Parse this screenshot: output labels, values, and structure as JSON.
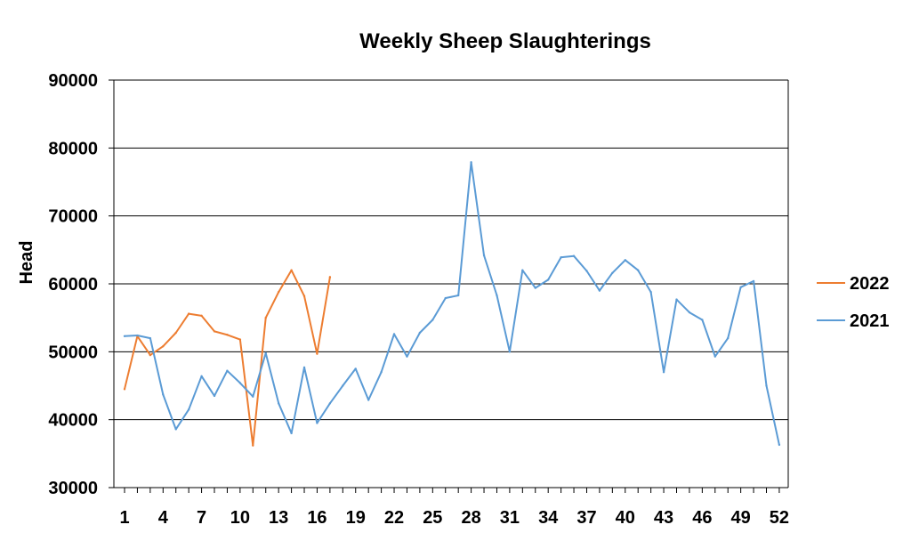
{
  "chart_data": {
    "type": "line",
    "title": "Weekly Sheep Slaughterings",
    "xlabel": "",
    "ylabel": "Head",
    "xlim": [
      1,
      52
    ],
    "ylim": [
      30000,
      90000
    ],
    "y_ticks": [
      30000,
      40000,
      50000,
      60000,
      70000,
      80000,
      90000
    ],
    "x_ticks": [
      1,
      4,
      7,
      10,
      13,
      16,
      19,
      22,
      25,
      28,
      31,
      34,
      37,
      40,
      43,
      46,
      49,
      52
    ],
    "grid": "horizontal",
    "legend_position": "right",
    "series": [
      {
        "name": "2022",
        "color": "#ED7D31",
        "x": [
          1,
          2,
          3,
          4,
          5,
          6,
          7,
          8,
          9,
          10,
          11,
          12,
          13,
          14,
          15,
          16,
          17
        ],
        "values": [
          44500,
          52300,
          49500,
          50800,
          52800,
          55600,
          55300,
          53000,
          52500,
          51800,
          36200,
          55000,
          58800,
          62000,
          58200,
          49700,
          61000
        ]
      },
      {
        "name": "2021",
        "color": "#5B9BD5",
        "x": [
          1,
          2,
          3,
          4,
          5,
          6,
          7,
          8,
          9,
          10,
          11,
          12,
          13,
          14,
          15,
          16,
          17,
          18,
          19,
          20,
          21,
          22,
          23,
          24,
          25,
          26,
          27,
          28,
          29,
          30,
          31,
          32,
          33,
          34,
          35,
          36,
          37,
          38,
          39,
          40,
          41,
          42,
          43,
          44,
          45,
          46,
          47,
          48,
          49,
          50,
          51,
          52
        ],
        "values": [
          52300,
          52400,
          52000,
          43700,
          38600,
          41500,
          46400,
          43500,
          47200,
          45400,
          43400,
          49800,
          42400,
          38000,
          47700,
          39500,
          42400,
          45000,
          47500,
          42900,
          47000,
          52600,
          49300,
          52800,
          54700,
          57900,
          58300,
          77900,
          64200,
          58300,
          50000,
          62000,
          59400,
          60600,
          63900,
          64100,
          61900,
          59000,
          61600,
          63500,
          62000,
          58800,
          47000,
          57700,
          55800,
          54700,
          49300,
          52000,
          59500,
          60400,
          45000,
          36300
        ]
      }
    ]
  }
}
